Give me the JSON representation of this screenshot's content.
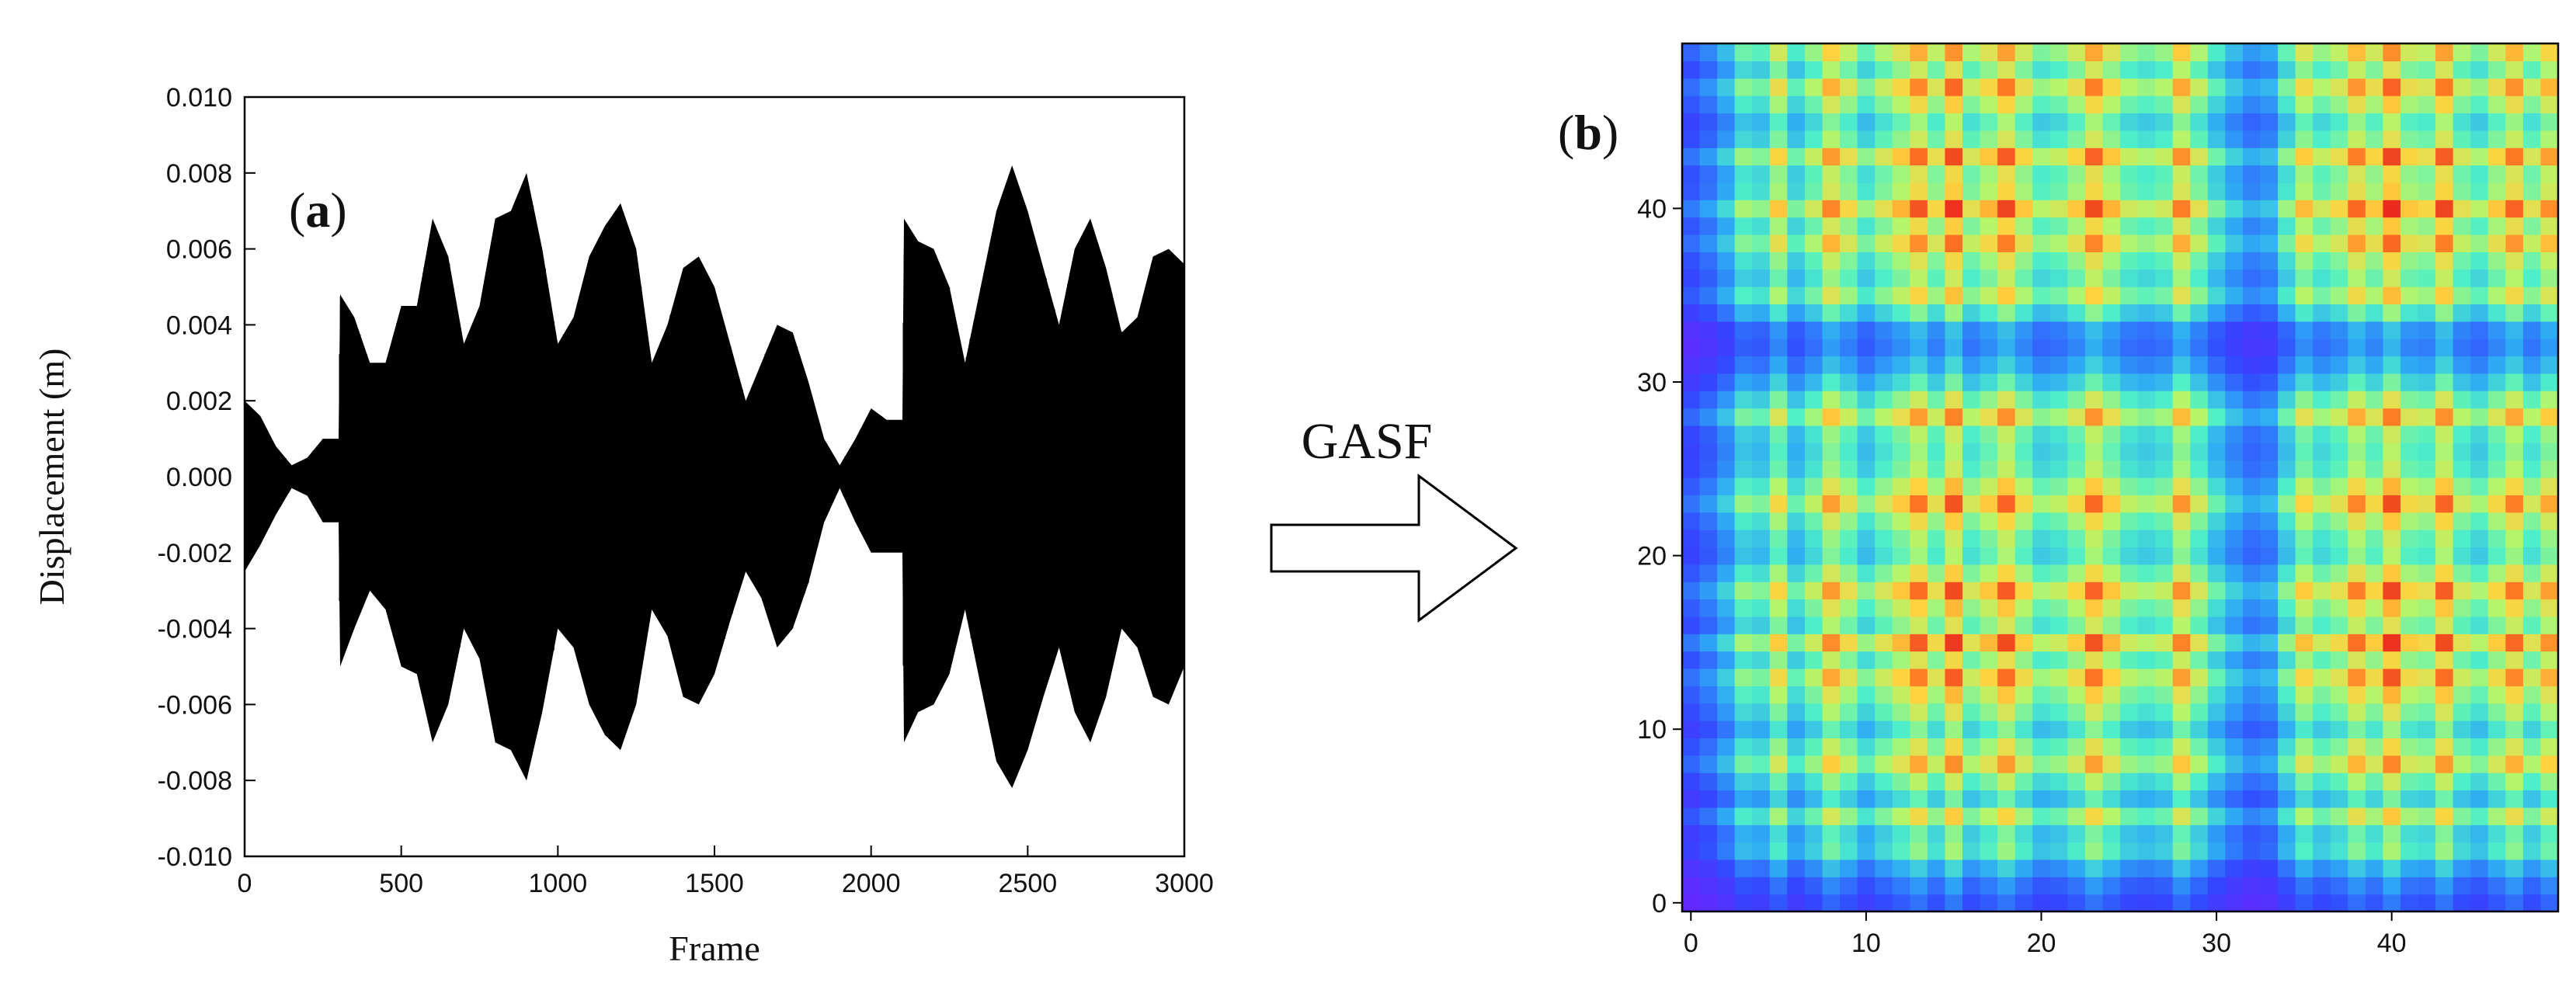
{
  "chart_data": [
    {
      "type": "line",
      "panel_label_open": "(",
      "panel_label_letter": "a",
      "panel_label_close": ")",
      "xlabel": "Frame",
      "ylabel": "Displacement (m)",
      "xlim": [
        0,
        3000
      ],
      "ylim": [
        -0.01,
        0.01
      ],
      "x_ticks": [
        0,
        500,
        1000,
        1500,
        2000,
        2500,
        3000
      ],
      "x_tick_labels": [
        "0",
        "500",
        "1000",
        "1500",
        "2000",
        "2500",
        "3000"
      ],
      "y_ticks": [
        0.01,
        0.008,
        0.006,
        0.004,
        0.002,
        0.0,
        -0.002,
        -0.004,
        -0.006,
        -0.008,
        -0.01
      ],
      "y_tick_labels": [
        "0.010",
        "0.008",
        "0.006",
        "0.004",
        "0.002",
        "0.000",
        "-0.002",
        "-0.004",
        "-0.006",
        "-0.008",
        "-0.010"
      ],
      "series_color": "#000000",
      "envelope": {
        "x": [
          0,
          50,
          100,
          150,
          200,
          250,
          300,
          305,
          350,
          400,
          450,
          500,
          550,
          600,
          650,
          700,
          750,
          800,
          850,
          900,
          950,
          1000,
          1050,
          1100,
          1150,
          1200,
          1250,
          1300,
          1350,
          1400,
          1450,
          1500,
          1550,
          1600,
          1650,
          1700,
          1750,
          1800,
          1850,
          1900,
          1950,
          2000,
          2050,
          2100,
          2105,
          2150,
          2200,
          2250,
          2300,
          2350,
          2400,
          2450,
          2500,
          2550,
          2600,
          2650,
          2700,
          2750,
          2800,
          2850,
          2900,
          2950,
          3000
        ],
        "upper": [
          0.002,
          0.0016,
          0.0008,
          0.0003,
          0.0005,
          0.001,
          0.001,
          0.0048,
          0.0042,
          0.003,
          0.003,
          0.0045,
          0.0045,
          0.0068,
          0.0058,
          0.0035,
          0.0045,
          0.0068,
          0.007,
          0.008,
          0.006,
          0.0035,
          0.0042,
          0.0058,
          0.0066,
          0.0072,
          0.006,
          0.003,
          0.004,
          0.0055,
          0.0058,
          0.005,
          0.0035,
          0.002,
          0.003,
          0.004,
          0.0038,
          0.0025,
          0.001,
          0.0003,
          0.001,
          0.0018,
          0.0015,
          0.0015,
          0.0068,
          0.0062,
          0.006,
          0.005,
          0.003,
          0.005,
          0.007,
          0.0082,
          0.007,
          0.0055,
          0.004,
          0.006,
          0.0068,
          0.0055,
          0.0038,
          0.0042,
          0.0058,
          0.006,
          0.0056
        ],
        "lower": [
          -0.0025,
          -0.0018,
          -0.001,
          -0.0003,
          -0.0005,
          -0.0012,
          -0.0012,
          -0.005,
          -0.004,
          -0.003,
          -0.0035,
          -0.005,
          -0.0052,
          -0.007,
          -0.006,
          -0.004,
          -0.0048,
          -0.007,
          -0.0072,
          -0.008,
          -0.0062,
          -0.004,
          -0.0045,
          -0.006,
          -0.0068,
          -0.0072,
          -0.006,
          -0.0035,
          -0.0042,
          -0.0058,
          -0.006,
          -0.0052,
          -0.0038,
          -0.0025,
          -0.0032,
          -0.0045,
          -0.004,
          -0.0028,
          -0.0012,
          -0.0003,
          -0.0012,
          -0.002,
          -0.002,
          -0.002,
          -0.007,
          -0.0062,
          -0.006,
          -0.0052,
          -0.0035,
          -0.0055,
          -0.0075,
          -0.0082,
          -0.0072,
          -0.0058,
          -0.0045,
          -0.0062,
          -0.007,
          -0.0058,
          -0.004,
          -0.0045,
          -0.0058,
          -0.006,
          -0.005
        ]
      }
    },
    {
      "type": "heatmap",
      "panel_label_open": "(",
      "panel_label_letter": "b",
      "panel_label_close": ")",
      "grid_size": 50,
      "xlim": [
        -0.5,
        49.5
      ],
      "ylim": [
        -0.5,
        49.5
      ],
      "x_ticks": [
        0,
        10,
        20,
        30,
        40
      ],
      "x_tick_labels": [
        "0",
        "10",
        "20",
        "30",
        "40"
      ],
      "y_ticks": [
        0,
        10,
        20,
        30,
        40
      ],
      "y_tick_labels": [
        "0",
        "10",
        "20",
        "30",
        "40"
      ],
      "colormap": [
        "#7a1aff",
        "#3346ff",
        "#2ea9f5",
        "#4ef0c8",
        "#b4f56b",
        "#ffd23f",
        "#ff7a25",
        "#e4161b"
      ],
      "profile": [
        0.05,
        0.08,
        0.15,
        0.32,
        0.28,
        0.55,
        0.25,
        0.4,
        0.72,
        0.5,
        0.3,
        0.45,
        0.6,
        0.85,
        0.5,
        0.95,
        0.45,
        0.6,
        0.9,
        0.55,
        0.35,
        0.4,
        0.55,
        0.88,
        0.6,
        0.4,
        0.35,
        0.4,
        0.75,
        0.45,
        0.25,
        0.15,
        0.1,
        0.12,
        0.3,
        0.58,
        0.4,
        0.5,
        0.8,
        0.55,
        0.97,
        0.55,
        0.5,
        0.9,
        0.45,
        0.35,
        0.55,
        0.82,
        0.45,
        0.7
      ]
    }
  ],
  "transform_label": "GASF"
}
